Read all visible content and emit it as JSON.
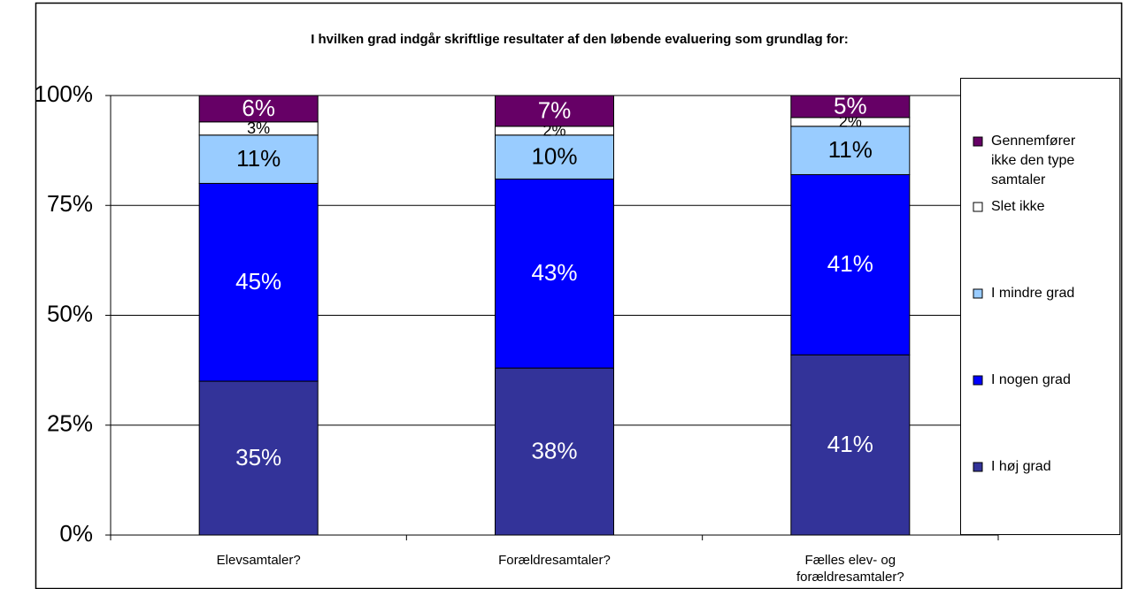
{
  "chart_data": {
    "type": "stacked_bar",
    "title": "I hvilken grad indgår skriftlige resultater af den løbende evaluering som grundlag for:",
    "categories": [
      "Elevsamtaler?",
      "Forældresamtaler?",
      "Fælles elev- og forældresamtaler?"
    ],
    "series": [
      {
        "name": "I høj grad",
        "color": "#333399",
        "values": [
          35,
          38,
          41
        ],
        "value_labels": [
          "35%",
          "38%",
          "41%"
        ]
      },
      {
        "name": "I nogen grad",
        "color": "#0000ff",
        "values": [
          45,
          43,
          41
        ],
        "value_labels": [
          "45%",
          "43%",
          "41%"
        ]
      },
      {
        "name": "I mindre grad",
        "color": "#99ccff",
        "values": [
          11,
          10,
          11
        ],
        "value_labels": [
          "11%",
          "10%",
          "11%"
        ]
      },
      {
        "name": "Slet ikke",
        "color": "#ffffff",
        "values": [
          3,
          2,
          2
        ],
        "value_labels": [
          "3%",
          "2%",
          "2%"
        ]
      },
      {
        "name": "Gennemfører ikke den type samtaler",
        "color": "#660066",
        "values": [
          6,
          7,
          5
        ],
        "value_labels": [
          "6%",
          "7%",
          "5%"
        ]
      }
    ],
    "ylim": [
      0,
      100
    ],
    "yticks": [
      {
        "value": 0,
        "label": "0%"
      },
      {
        "value": 25,
        "label": "25%"
      },
      {
        "value": 50,
        "label": "50%"
      },
      {
        "value": 75,
        "label": "75%"
      },
      {
        "value": 100,
        "label": "100%"
      }
    ],
    "grid": true,
    "legend": "right"
  }
}
